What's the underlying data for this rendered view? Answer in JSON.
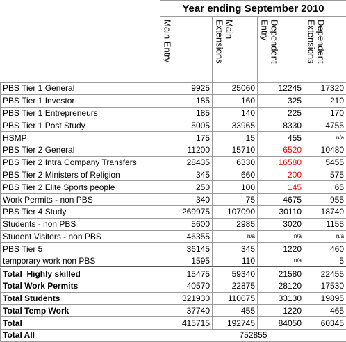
{
  "header": {
    "title": "Year ending September 2010",
    "columns": [
      "Main Entry",
      "Main Extensions",
      "Dependent Entry",
      "Dependent Extensions"
    ]
  },
  "table": {
    "rows": [
      {
        "label": "PBS Tier 1 General",
        "cells": [
          9925,
          25060,
          12245,
          17320
        ]
      },
      {
        "label": "PBS Tier 1 Investor",
        "cells": [
          185,
          160,
          325,
          210
        ]
      },
      {
        "label": "PBS Tier 1 Entrepreneurs",
        "cells": [
          185,
          140,
          225,
          170
        ]
      },
      {
        "label": "PBS Tier 1 Post Study",
        "cells": [
          5005,
          33965,
          8330,
          4755
        ]
      },
      {
        "label": "HSMP",
        "cells": [
          175,
          15,
          455,
          "n/a"
        ]
      },
      {
        "label": "PBS Tier 2 General",
        "cells": [
          11200,
          15710,
          {
            "value": 6520,
            "color": "#ff0000"
          },
          10480
        ]
      },
      {
        "label": "PBS Tier 2 Intra Company Transfers",
        "cells": [
          28435,
          6330,
          {
            "value": 16580,
            "color": "#ff0000"
          },
          5455
        ]
      },
      {
        "label": "PBS Tier 2 Ministers of Religion",
        "cells": [
          345,
          660,
          {
            "value": 200,
            "color": "#ff0000"
          },
          575
        ]
      },
      {
        "label": "PBS Tier 2 Elite Sports people",
        "cells": [
          250,
          100,
          {
            "value": 145,
            "color": "#ff0000"
          },
          65
        ]
      },
      {
        "label": "Work Permits - non PBS",
        "cells": [
          340,
          75,
          4675,
          955
        ]
      },
      {
        "label": "PBS Tier 4 Study",
        "cells": [
          269975,
          107090,
          30110,
          18740
        ]
      },
      {
        "label": "Students - non PBS",
        "cells": [
          5600,
          2985,
          3020,
          1155
        ]
      },
      {
        "label": "Student Visitors - non PBS",
        "cells": [
          46355,
          "n/a",
          "n/a",
          "n/a"
        ]
      },
      {
        "label": "PBS Tier 5",
        "cells": [
          36145,
          345,
          1220,
          460
        ]
      },
      {
        "label": "temporary work non PBS",
        "cells": [
          1595,
          110,
          "n/a",
          5
        ]
      }
    ],
    "totals": [
      {
        "label": "Total  Highly skilled",
        "cells": [
          15475,
          59340,
          21580,
          22455
        ]
      },
      {
        "label": "Total Work Permits",
        "cells": [
          40570,
          22875,
          28120,
          17530
        ]
      },
      {
        "label": "Total Students",
        "cells": [
          321930,
          110075,
          33130,
          19895
        ]
      },
      {
        "label": "Total Temp Work",
        "cells": [
          37740,
          455,
          1220,
          465
        ]
      },
      {
        "label": "Total",
        "cells": [
          415715,
          192745,
          84050,
          60345
        ]
      }
    ],
    "total_all": {
      "label": "Total All",
      "value": 752855
    }
  }
}
